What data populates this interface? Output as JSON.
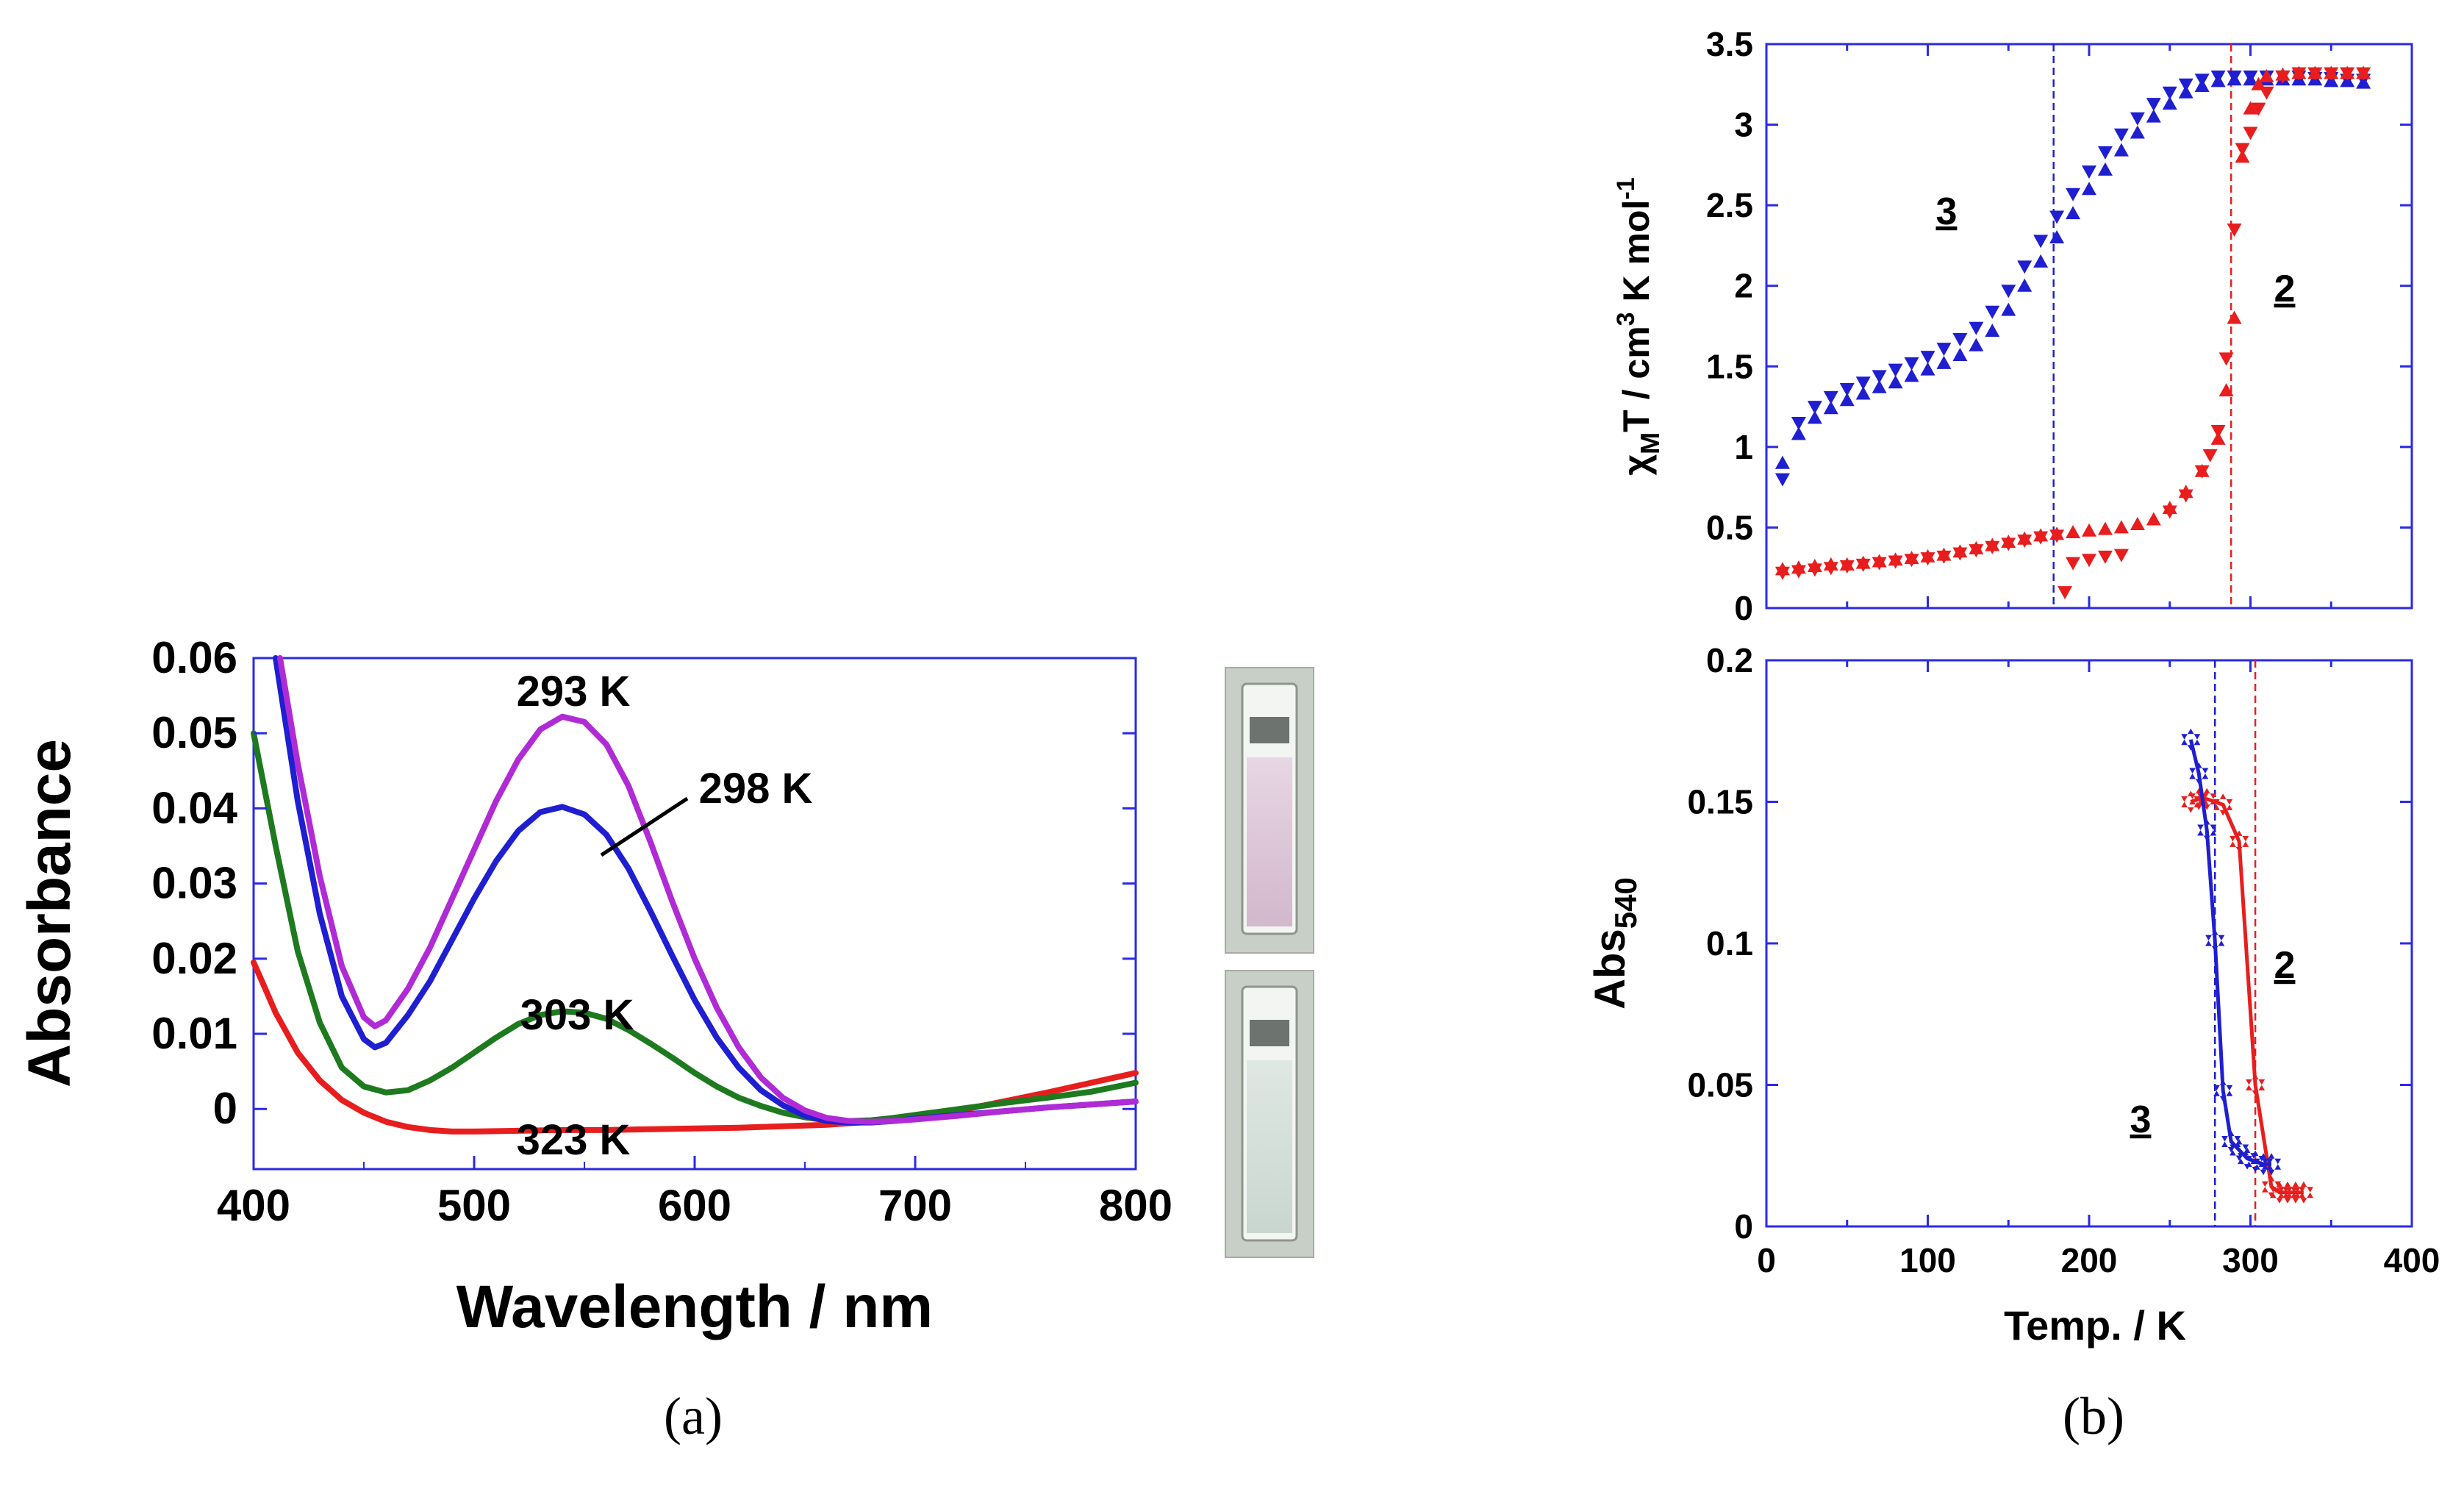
{
  "chart_data": [
    {
      "id": "panel-a",
      "type": "line",
      "panel_label": "(a)",
      "xlabel": "Wavelength / nm",
      "ylabel": "Absorbance",
      "xlim": [
        400,
        800
      ],
      "ylim": [
        -0.008,
        0.06
      ],
      "xticks": [
        "400",
        "500",
        "600",
        "700",
        "800"
      ],
      "yticks": [
        "0",
        "0.01",
        "0.02",
        "0.03",
        "0.04",
        "0.05",
        "0.06"
      ],
      "series": [
        {
          "name": "293 K",
          "color": "#b02bd6",
          "x": [
            412,
            420,
            430,
            440,
            450,
            455,
            460,
            470,
            480,
            490,
            500,
            510,
            520,
            530,
            540,
            550,
            560,
            570,
            580,
            590,
            600,
            610,
            620,
            630,
            640,
            650,
            660,
            670,
            680,
            690,
            700,
            720,
            740,
            760,
            780,
            800
          ],
          "y": [
            0.06,
            0.046,
            0.031,
            0.019,
            0.0122,
            0.011,
            0.0118,
            0.016,
            0.0215,
            0.028,
            0.0345,
            0.041,
            0.0465,
            0.0505,
            0.0522,
            0.0515,
            0.0485,
            0.043,
            0.0355,
            0.0275,
            0.02,
            0.0135,
            0.0082,
            0.0042,
            0.0015,
            -0.0002,
            -0.0012,
            -0.0016,
            -0.0017,
            -0.0016,
            -0.0014,
            -0.0009,
            -0.0003,
            0.0002,
            0.0006,
            0.001
          ]
        },
        {
          "name": "298 K",
          "color": "#1f1fd1",
          "x": [
            410,
            420,
            430,
            440,
            450,
            455,
            460,
            470,
            480,
            490,
            500,
            510,
            520,
            530,
            540,
            550,
            560,
            570,
            580,
            590,
            600,
            610,
            620,
            630,
            640,
            650,
            660,
            670,
            680,
            690,
            700,
            720,
            740,
            760,
            780,
            800
          ],
          "y": [
            0.06,
            0.041,
            0.026,
            0.015,
            0.0093,
            0.0082,
            0.0088,
            0.0125,
            0.017,
            0.0225,
            0.028,
            0.033,
            0.037,
            0.0395,
            0.0402,
            0.0392,
            0.0365,
            0.032,
            0.0263,
            0.0203,
            0.0145,
            0.0095,
            0.0055,
            0.0025,
            0.0005,
            -0.0009,
            -0.0016,
            -0.0018,
            -0.0018,
            -0.0016,
            -0.0013,
            -0.0008,
            -0.0003,
            0.0002,
            0.0006,
            0.001
          ]
        },
        {
          "name": "303 K",
          "color": "#1e7a1e",
          "x": [
            400,
            410,
            420,
            430,
            440,
            450,
            460,
            470,
            480,
            490,
            500,
            510,
            520,
            530,
            540,
            550,
            560,
            570,
            580,
            590,
            600,
            610,
            620,
            630,
            640,
            650,
            660,
            670,
            680,
            690,
            700,
            720,
            740,
            760,
            780,
            800
          ],
          "y": [
            0.05,
            0.035,
            0.021,
            0.0115,
            0.0055,
            0.003,
            0.0022,
            0.0025,
            0.0038,
            0.0055,
            0.0075,
            0.0095,
            0.0113,
            0.0125,
            0.013,
            0.0128,
            0.012,
            0.0105,
            0.0087,
            0.0068,
            0.0048,
            0.003,
            0.0015,
            0.0004,
            -0.0005,
            -0.0011,
            -0.0015,
            -0.0016,
            -0.0015,
            -0.0012,
            -0.0008,
            0.0,
            0.0008,
            0.0015,
            0.0023,
            0.0035
          ]
        },
        {
          "name": "323 K",
          "color": "#e81e1e",
          "x": [
            400,
            405,
            410,
            420,
            430,
            440,
            450,
            460,
            470,
            480,
            490,
            500,
            520,
            540,
            560,
            580,
            600,
            620,
            640,
            660,
            680,
            700,
            720,
            740,
            760,
            780,
            800
          ],
          "y": [
            0.0195,
            0.0162,
            0.0128,
            0.0075,
            0.0038,
            0.0012,
            -0.0005,
            -0.0017,
            -0.0024,
            -0.0028,
            -0.003,
            -0.003,
            -0.0029,
            -0.0028,
            -0.0028,
            -0.0027,
            -0.0026,
            -0.0025,
            -0.0023,
            -0.0021,
            -0.0017,
            -0.0012,
            -0.0002,
            0.001,
            0.0022,
            0.0035,
            0.0048
          ]
        }
      ],
      "annotations": [
        {
          "text": "293 K",
          "color": "#b02bd6"
        },
        {
          "text": "298 K",
          "color": "#1f1fd1"
        },
        {
          "text": "303 K",
          "color": "#1e7a1e"
        },
        {
          "text": "323 K",
          "color": "#e81e1e"
        }
      ]
    },
    {
      "id": "panel-b-top",
      "type": "scatter",
      "ylabel": "χMT / cm3 K mol-1",
      "xlim": [
        0,
        400
      ],
      "ylim": [
        0,
        3.5
      ],
      "yticks": [
        "0",
        "0.5",
        "1",
        "1.5",
        "2",
        "2.5",
        "3",
        "3.5"
      ],
      "vlines": [
        {
          "x": 178,
          "color": "#1f1fd1"
        },
        {
          "x": 288,
          "color": "#e81e1e"
        }
      ],
      "labels": [
        {
          "text": "3",
          "color": "#1f1fd1"
        },
        {
          "text": "2",
          "color": "#e81e1e"
        }
      ],
      "series": [
        {
          "name": "3 up",
          "marker": "triangle-up",
          "color": "#1f1fd1",
          "x": [
            10,
            20,
            30,
            40,
            50,
            60,
            70,
            80,
            90,
            100,
            110,
            120,
            130,
            140,
            150,
            160,
            170,
            180,
            190,
            200,
            210,
            220,
            230,
            240,
            250,
            260,
            270,
            280,
            290,
            300,
            310,
            320,
            330,
            340,
            350,
            360,
            370
          ],
          "y": [
            0.9,
            1.08,
            1.18,
            1.24,
            1.29,
            1.33,
            1.37,
            1.4,
            1.44,
            1.48,
            1.52,
            1.57,
            1.63,
            1.72,
            1.85,
            2.0,
            2.15,
            2.3,
            2.45,
            2.6,
            2.72,
            2.84,
            2.95,
            3.05,
            3.13,
            3.2,
            3.24,
            3.27,
            3.28,
            3.28,
            3.28,
            3.28,
            3.28,
            3.28,
            3.27,
            3.27,
            3.26
          ]
        },
        {
          "name": "3 down",
          "marker": "triangle-down",
          "color": "#1f1fd1",
          "x": [
            10,
            20,
            30,
            40,
            50,
            60,
            70,
            80,
            90,
            100,
            110,
            120,
            130,
            140,
            150,
            160,
            170,
            180,
            190,
            200,
            210,
            220,
            230,
            240,
            250,
            260,
            270,
            280,
            290,
            300,
            310,
            320,
            330,
            340,
            350,
            360,
            370
          ],
          "y": [
            0.8,
            1.15,
            1.25,
            1.31,
            1.36,
            1.4,
            1.44,
            1.48,
            1.52,
            1.56,
            1.61,
            1.67,
            1.74,
            1.84,
            1.97,
            2.12,
            2.28,
            2.43,
            2.57,
            2.71,
            2.83,
            2.94,
            3.04,
            3.13,
            3.2,
            3.25,
            3.28,
            3.3,
            3.3,
            3.3,
            3.3,
            3.3,
            3.3,
            3.29,
            3.29,
            3.28,
            3.28
          ]
        },
        {
          "name": "2 up",
          "marker": "triangle-up",
          "color": "#e81e1e",
          "x": [
            10,
            20,
            30,
            40,
            50,
            60,
            70,
            80,
            90,
            100,
            110,
            120,
            130,
            140,
            150,
            160,
            170,
            180,
            190,
            200,
            210,
            220,
            230,
            240,
            250,
            260,
            270,
            280,
            285,
            290,
            295,
            300,
            305,
            310,
            320,
            330,
            340,
            350,
            360,
            370
          ],
          "y": [
            0.24,
            0.25,
            0.26,
            0.27,
            0.27,
            0.28,
            0.29,
            0.3,
            0.31,
            0.32,
            0.33,
            0.35,
            0.37,
            0.39,
            0.41,
            0.43,
            0.45,
            0.46,
            0.47,
            0.48,
            0.49,
            0.5,
            0.52,
            0.55,
            0.62,
            0.72,
            0.85,
            1.05,
            1.35,
            1.8,
            2.8,
            3.1,
            3.25,
            3.3,
            3.31,
            3.32,
            3.32,
            3.32,
            3.32,
            3.32
          ]
        },
        {
          "name": "2 down",
          "marker": "triangle-down",
          "color": "#e81e1e",
          "x": [
            10,
            20,
            30,
            40,
            50,
            60,
            70,
            80,
            90,
            100,
            110,
            120,
            130,
            140,
            150,
            160,
            170,
            180,
            185,
            190,
            200,
            210,
            220,
            250,
            260,
            270,
            275,
            280,
            285,
            290,
            295,
            300,
            305,
            310,
            320,
            330,
            340,
            350,
            360,
            370
          ],
          "y": [
            0.22,
            0.23,
            0.24,
            0.25,
            0.26,
            0.27,
            0.28,
            0.29,
            0.3,
            0.31,
            0.32,
            0.34,
            0.36,
            0.38,
            0.4,
            0.42,
            0.44,
            0.45,
            0.1,
            0.28,
            0.3,
            0.32,
            0.33,
            0.6,
            0.7,
            0.85,
            0.95,
            1.1,
            1.55,
            2.35,
            2.85,
            2.95,
            3.1,
            3.2,
            3.3,
            3.32,
            3.32,
            3.32,
            3.32,
            3.32
          ]
        }
      ]
    },
    {
      "id": "panel-b-bottom",
      "type": "line",
      "panel_label": "(b)",
      "xlabel": "Temp. / K",
      "ylabel": "Abs540",
      "xlim": [
        0,
        400
      ],
      "ylim": [
        0,
        0.2
      ],
      "xticks": [
        "0",
        "100",
        "200",
        "300",
        "400"
      ],
      "yticks": [
        "0",
        "0.05",
        "0.1",
        "0.15",
        "0.2"
      ],
      "vlines": [
        {
          "x": 278,
          "color": "#1f1fd1"
        },
        {
          "x": 303,
          "color": "#e81e1e"
        }
      ],
      "labels": [
        {
          "text": "2",
          "color": "#e81e1e"
        },
        {
          "text": "3",
          "color": "#1f1fd1"
        }
      ],
      "series": [
        {
          "name": "2",
          "marker": "star",
          "color": "#e81e1e",
          "x": [
            263,
            268,
            273,
            283,
            293,
            303,
            313,
            318,
            323,
            328,
            333
          ],
          "y": [
            0.15,
            0.151,
            0.151,
            0.149,
            0.136,
            0.05,
            0.014,
            0.012,
            0.012,
            0.012,
            0.012
          ]
        },
        {
          "name": "3",
          "marker": "star",
          "color": "#1f1fd1",
          "x": [
            263,
            268,
            273,
            278,
            283,
            288,
            293,
            298,
            303,
            308,
            313
          ],
          "y": [
            0.172,
            0.16,
            0.14,
            0.101,
            0.048,
            0.03,
            0.027,
            0.024,
            0.023,
            0.022,
            0.022
          ]
        }
      ]
    }
  ],
  "labels": {
    "panel_a_xlabel": "Wavelength / nm",
    "panel_a_ylabel": "Absorbance",
    "panel_a_tag": "(a)",
    "panel_b_xlabel": "Temp. / K",
    "panel_b_tag": "(b)",
    "k293": "293 K",
    "k298": "298 K",
    "k303": "303 K",
    "k323": "323 K",
    "top_label_3": "3",
    "top_label_2": "2",
    "bot_label_2": "2",
    "bot_label_3": "3",
    "top_ylabel_chi": "χ",
    "top_ylabel_M": "M",
    "top_ylabel_T": "T / cm",
    "top_ylabel_3": "3",
    "top_ylabel_Kmol": " K mol",
    "top_ylabel_exp": "-1",
    "bot_ylabel_abs": "Abs",
    "bot_ylabel_sub": "540"
  }
}
